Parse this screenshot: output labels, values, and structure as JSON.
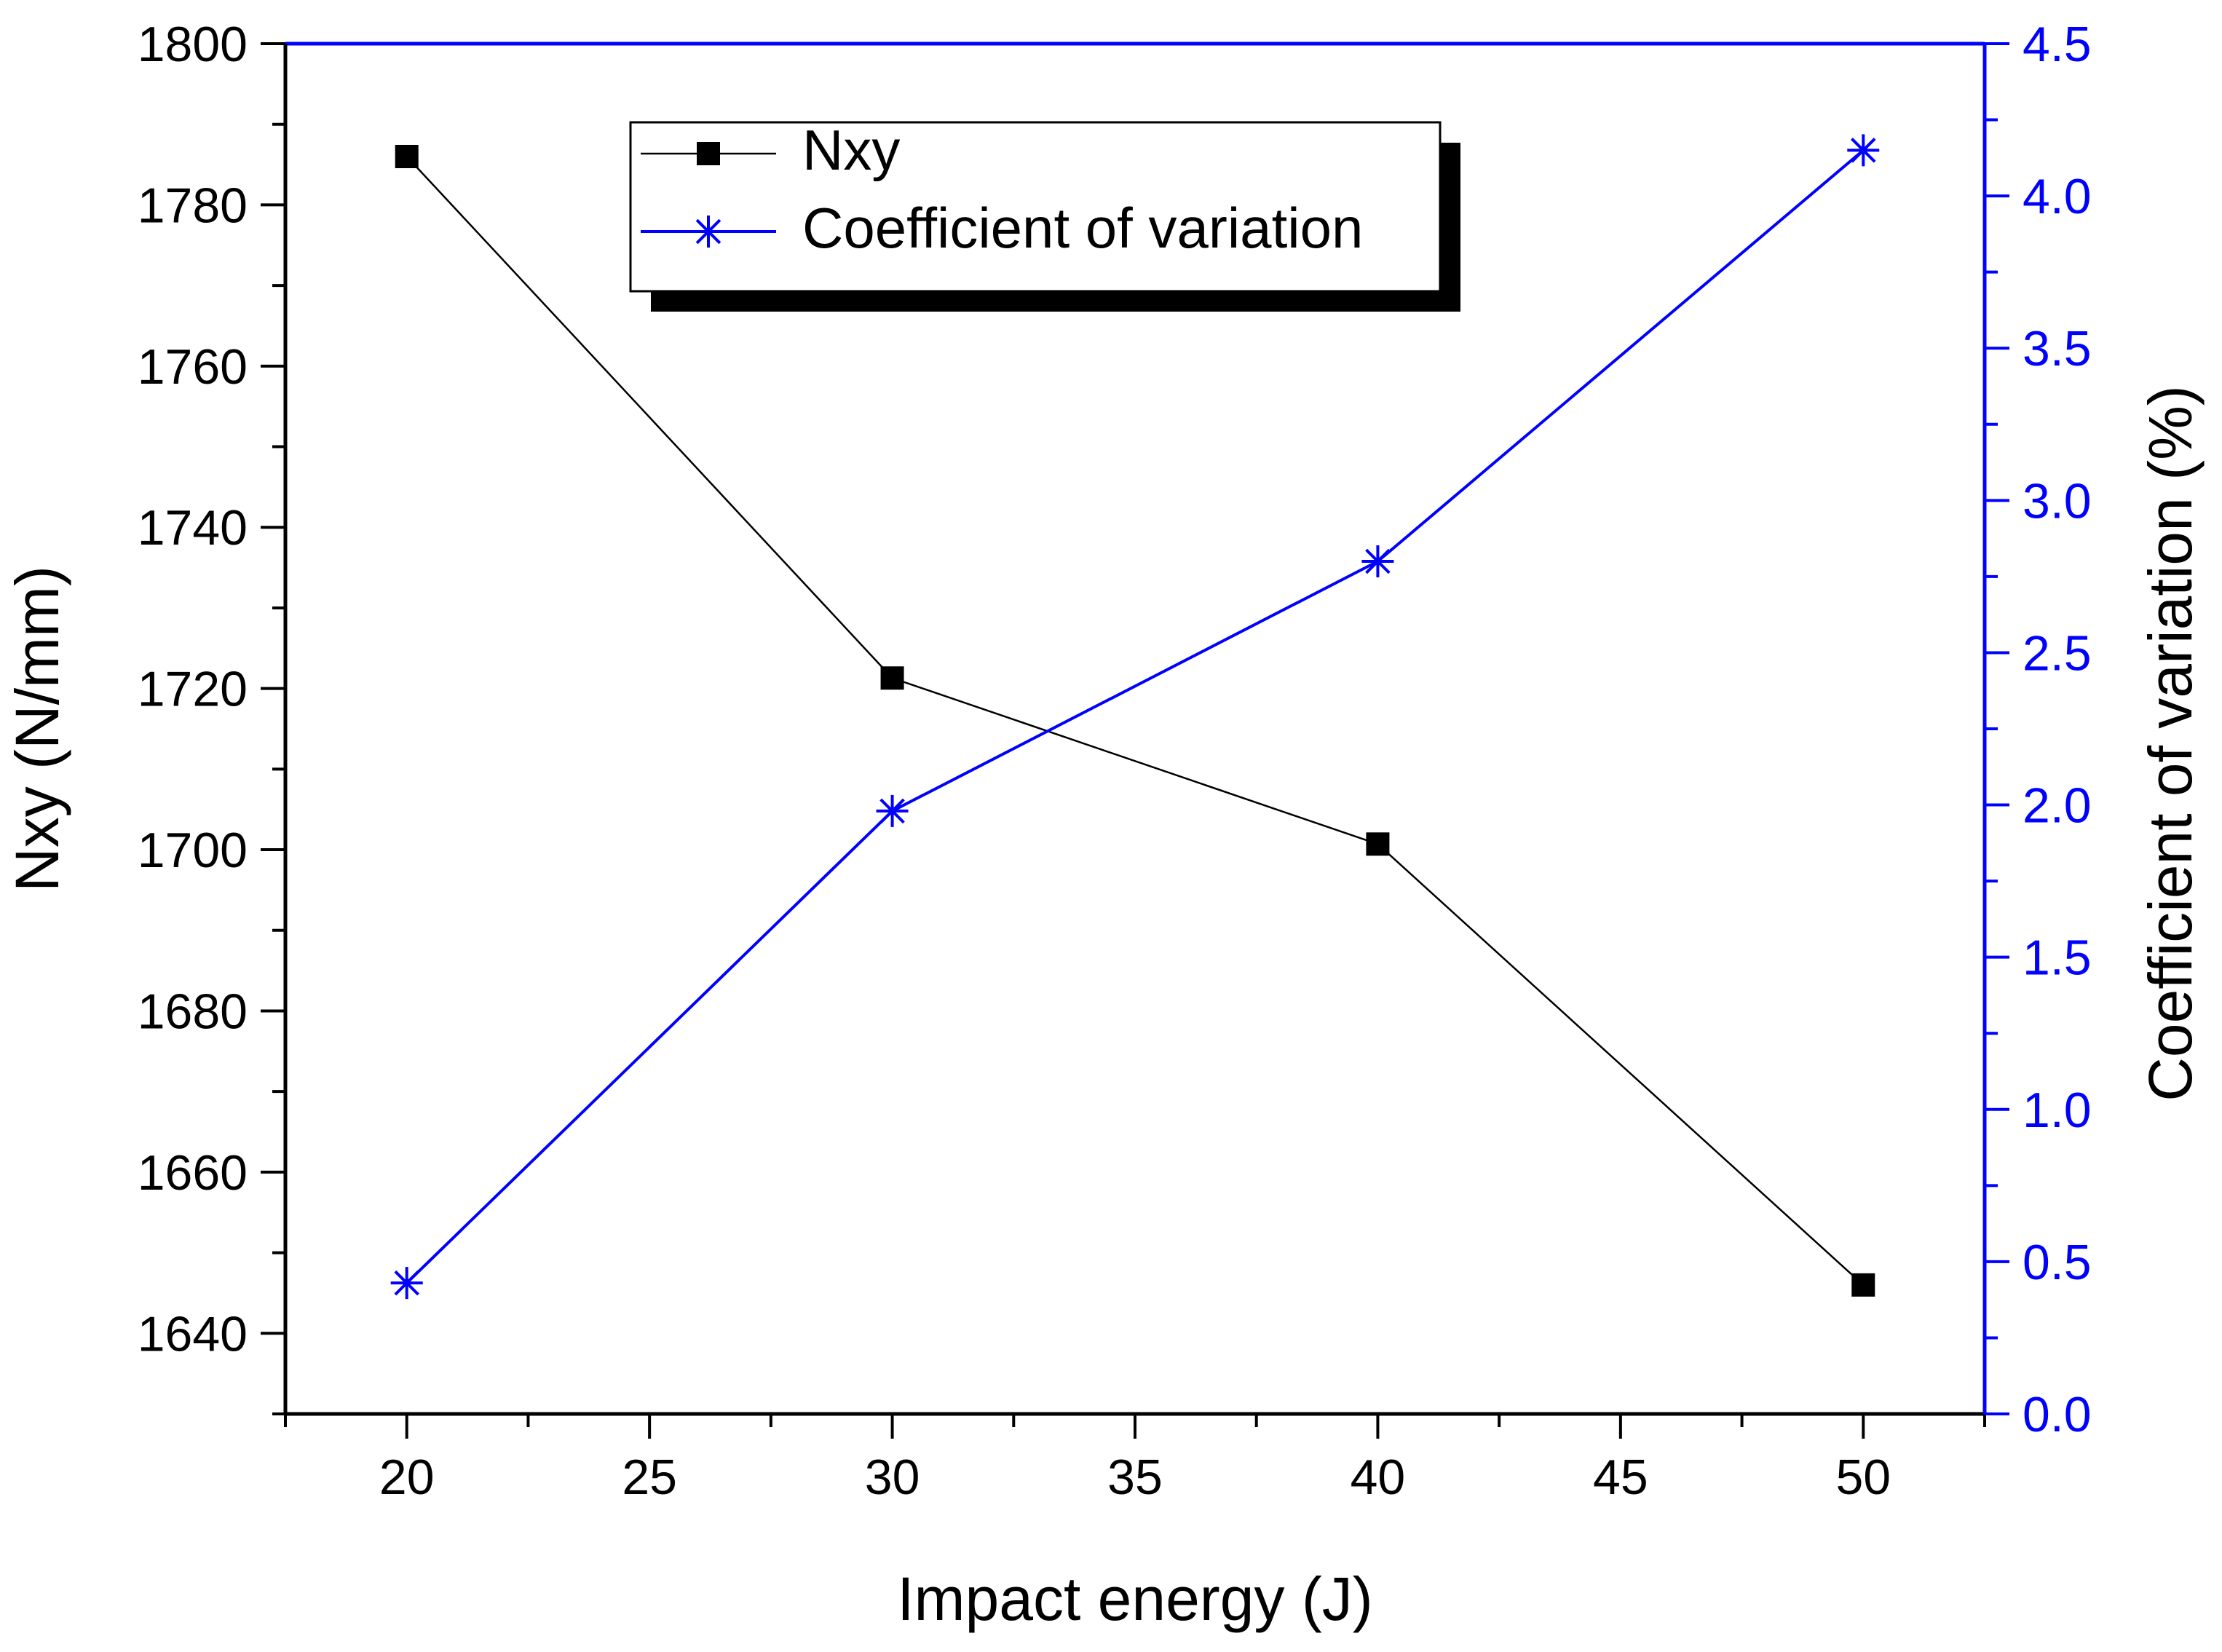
{
  "chart_data": {
    "type": "line",
    "title": "",
    "xlabel": "Impact energy (J)",
    "ylabel": "Nxy (N/mm)",
    "y2label": "Coefficient of variation (%)",
    "xlim": [
      17.5,
      52.5
    ],
    "ylim": [
      1630,
      1800
    ],
    "y2lim": [
      0.0,
      4.5
    ],
    "x_ticks": [
      20,
      25,
      30,
      35,
      40,
      45,
      50
    ],
    "y_ticks": [
      1640,
      1660,
      1680,
      1700,
      1720,
      1740,
      1760,
      1780,
      1800
    ],
    "y2_ticks": [
      "0.0",
      "0.5",
      "1.0",
      "1.5",
      "2.0",
      "2.5",
      "3.0",
      "3.5",
      "4.0",
      "4.5"
    ],
    "legend_position": "top-center",
    "series": [
      {
        "name": "Nxy",
        "axis": "left",
        "color": "#000000",
        "marker": "square",
        "x": [
          20,
          30,
          40,
          50
        ],
        "values": [
          1786,
          1721.3,
          1700.7,
          1646
        ]
      },
      {
        "name": "Coefficient of variation",
        "axis": "right",
        "color": "#0000ff",
        "marker": "asterisk",
        "x": [
          20,
          30,
          40,
          50
        ],
        "values": [
          0.43,
          1.98,
          2.8,
          4.15
        ]
      }
    ]
  }
}
